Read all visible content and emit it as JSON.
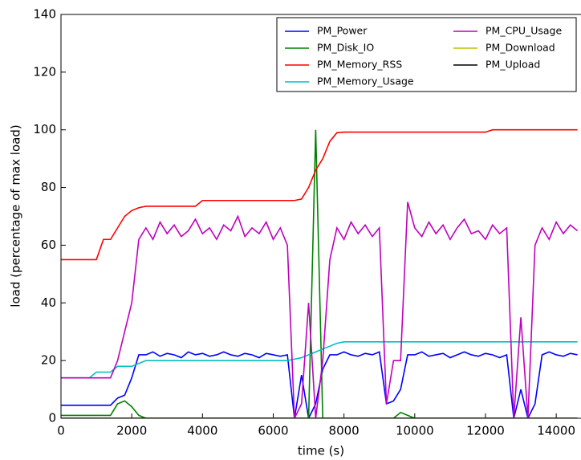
{
  "chart_data": {
    "type": "line",
    "xlabel": "time (s)",
    "ylabel": "load (percentage of max load)",
    "xlim": [
      0,
      14700
    ],
    "ylim": [
      0,
      140
    ],
    "xticks": [
      0,
      2000,
      4000,
      6000,
      8000,
      10000,
      12000,
      14000
    ],
    "yticks": [
      0,
      20,
      40,
      60,
      80,
      100,
      120,
      140
    ],
    "legend": "upper right",
    "x": [
      0,
      200,
      400,
      600,
      800,
      1000,
      1200,
      1400,
      1600,
      1800,
      2000,
      2200,
      2400,
      2600,
      2800,
      3000,
      3200,
      3400,
      3600,
      3800,
      4000,
      4200,
      4400,
      4600,
      4800,
      5000,
      5200,
      5400,
      5600,
      5800,
      6000,
      6200,
      6400,
      6600,
      6800,
      7000,
      7200,
      7400,
      7600,
      7800,
      8000,
      8200,
      8400,
      8600,
      8800,
      9000,
      9200,
      9400,
      9600,
      9800,
      10000,
      10200,
      10400,
      10600,
      10800,
      11000,
      11200,
      11400,
      11600,
      11800,
      12000,
      12200,
      12400,
      12600,
      12800,
      13000,
      13200,
      13400,
      13600,
      13800,
      14000,
      14200,
      14400,
      14600
    ],
    "series": [
      {
        "name": "PM_Power",
        "color": "#0000ff",
        "values": [
          4.5,
          4.5,
          4.5,
          4.5,
          4.5,
          4.5,
          4.5,
          4.5,
          7,
          8,
          14,
          22,
          22,
          23,
          21.5,
          22.5,
          22,
          21,
          23,
          22,
          22.5,
          21.5,
          22,
          23,
          22,
          21.5,
          22.5,
          22,
          21,
          22.5,
          22,
          21.5,
          22,
          0,
          15,
          0,
          5,
          17,
          22,
          22,
          23,
          22,
          21.5,
          22.5,
          22,
          23,
          5,
          6,
          10,
          22,
          22,
          23,
          21.5,
          22,
          22.5,
          21,
          22,
          23,
          22,
          21.5,
          22.5,
          22,
          21,
          22,
          0,
          10,
          0,
          5,
          22,
          23,
          22,
          21.5,
          22.5,
          22
        ]
      },
      {
        "name": "PM_Disk_IO",
        "color": "#008000",
        "values": [
          1,
          1,
          1,
          1,
          1,
          1,
          1,
          1,
          5,
          6,
          4,
          1,
          0,
          0,
          0,
          0,
          0,
          0,
          0,
          0,
          0,
          0,
          0,
          0,
          0,
          0,
          0,
          0,
          0,
          0,
          0,
          0,
          0,
          0,
          0,
          0,
          100,
          0,
          0,
          0,
          0,
          0,
          0,
          0,
          0,
          0,
          0,
          0,
          2,
          1,
          0,
          0,
          0,
          0,
          0,
          0,
          0,
          0,
          0,
          0,
          0,
          0,
          0,
          0,
          0,
          0,
          0,
          0,
          0,
          0,
          0,
          0,
          0,
          0
        ]
      },
      {
        "name": "PM_Memory_RSS",
        "color": "#ff0000",
        "values": [
          55,
          55,
          55,
          55,
          55,
          55,
          62,
          62,
          66,
          70,
          72,
          73,
          73.5,
          73.5,
          73.5,
          73.5,
          73.5,
          73.5,
          73.5,
          73.5,
          75.5,
          75.5,
          75.5,
          75.5,
          75.5,
          75.5,
          75.5,
          75.5,
          75.5,
          75.5,
          75.5,
          75.5,
          75.5,
          75.5,
          76,
          80,
          86,
          90,
          96,
          99,
          99.2,
          99.2,
          99.2,
          99.2,
          99.2,
          99.2,
          99.2,
          99.2,
          99.2,
          99.2,
          99.2,
          99.2,
          99.2,
          99.2,
          99.2,
          99.2,
          99.2,
          99.2,
          99.2,
          99.2,
          99.2,
          100,
          100,
          100,
          100,
          100,
          100,
          100,
          100,
          100,
          100,
          100,
          100,
          100
        ]
      },
      {
        "name": "PM_Memory_Usage",
        "color": "#00bfbf",
        "values": [
          14,
          14,
          14,
          14,
          14,
          16,
          16,
          16,
          18,
          18,
          18,
          19,
          20,
          20,
          20,
          20,
          20,
          20,
          20,
          20,
          20,
          20,
          20,
          20,
          20,
          20,
          20,
          20,
          20,
          20,
          20,
          20,
          20,
          20.5,
          21,
          22,
          23,
          24,
          25,
          26,
          26.5,
          26.5,
          26.5,
          26.5,
          26.5,
          26.5,
          26.5,
          26.5,
          26.5,
          26.5,
          26.5,
          26.5,
          26.5,
          26.5,
          26.5,
          26.5,
          26.5,
          26.5,
          26.5,
          26.5,
          26.5,
          26.5,
          26.5,
          26.5,
          26.5,
          26.5,
          26.5,
          26.5,
          26.5,
          26.5,
          26.5,
          26.5,
          26.5,
          26.5
        ]
      },
      {
        "name": "PM_CPU_Usage",
        "color": "#bf00bf",
        "values": [
          14,
          14,
          14,
          14,
          14,
          14,
          14,
          14,
          20,
          30,
          40,
          62,
          66,
          62,
          68,
          64,
          67,
          63,
          65,
          69,
          64,
          66,
          62,
          67,
          65,
          70,
          63,
          66,
          64,
          68,
          62,
          66,
          60,
          0,
          5,
          40,
          0,
          20,
          55,
          66,
          62,
          68,
          64,
          67,
          63,
          66,
          5,
          20,
          20,
          75,
          66,
          63,
          68,
          64,
          67,
          62,
          66,
          69,
          64,
          65,
          62,
          67,
          64,
          66,
          0,
          35,
          0,
          60,
          66,
          62,
          68,
          64,
          67,
          65
        ]
      },
      {
        "name": "PM_Download",
        "color": "#bfbf00",
        "values": [
          0,
          0,
          0,
          0,
          0,
          0,
          0,
          0,
          0,
          0,
          0,
          0,
          0,
          0,
          0,
          0,
          0,
          0,
          0,
          0,
          0,
          0,
          0,
          0,
          0,
          0,
          0,
          0,
          0,
          0,
          0,
          0,
          0,
          0,
          0,
          0,
          0,
          0,
          0,
          0,
          0,
          0,
          0,
          0,
          0,
          0,
          0,
          0,
          0,
          0,
          0,
          0,
          0,
          0,
          0,
          0,
          0,
          0,
          0,
          0,
          0,
          0,
          0,
          0,
          0,
          0,
          0,
          0,
          0,
          0,
          0,
          0,
          0,
          0
        ]
      },
      {
        "name": "PM_Upload",
        "color": "#000000",
        "values": [
          0,
          0,
          0,
          0,
          0,
          0,
          0,
          0,
          0,
          0,
          0,
          0,
          0,
          0,
          0,
          0,
          0,
          0,
          0,
          0,
          0,
          0,
          0,
          0,
          0,
          0,
          0,
          0,
          0,
          0,
          0,
          0,
          0,
          0,
          0,
          0,
          0,
          0,
          0,
          0,
          0,
          0,
          0,
          0,
          0,
          0,
          0,
          0,
          0,
          0,
          0,
          0,
          0,
          0,
          0,
          0,
          0,
          0,
          0,
          0,
          0,
          0,
          0,
          0,
          0,
          0,
          0,
          0,
          0,
          0,
          0,
          0,
          0,
          0
        ]
      }
    ]
  }
}
